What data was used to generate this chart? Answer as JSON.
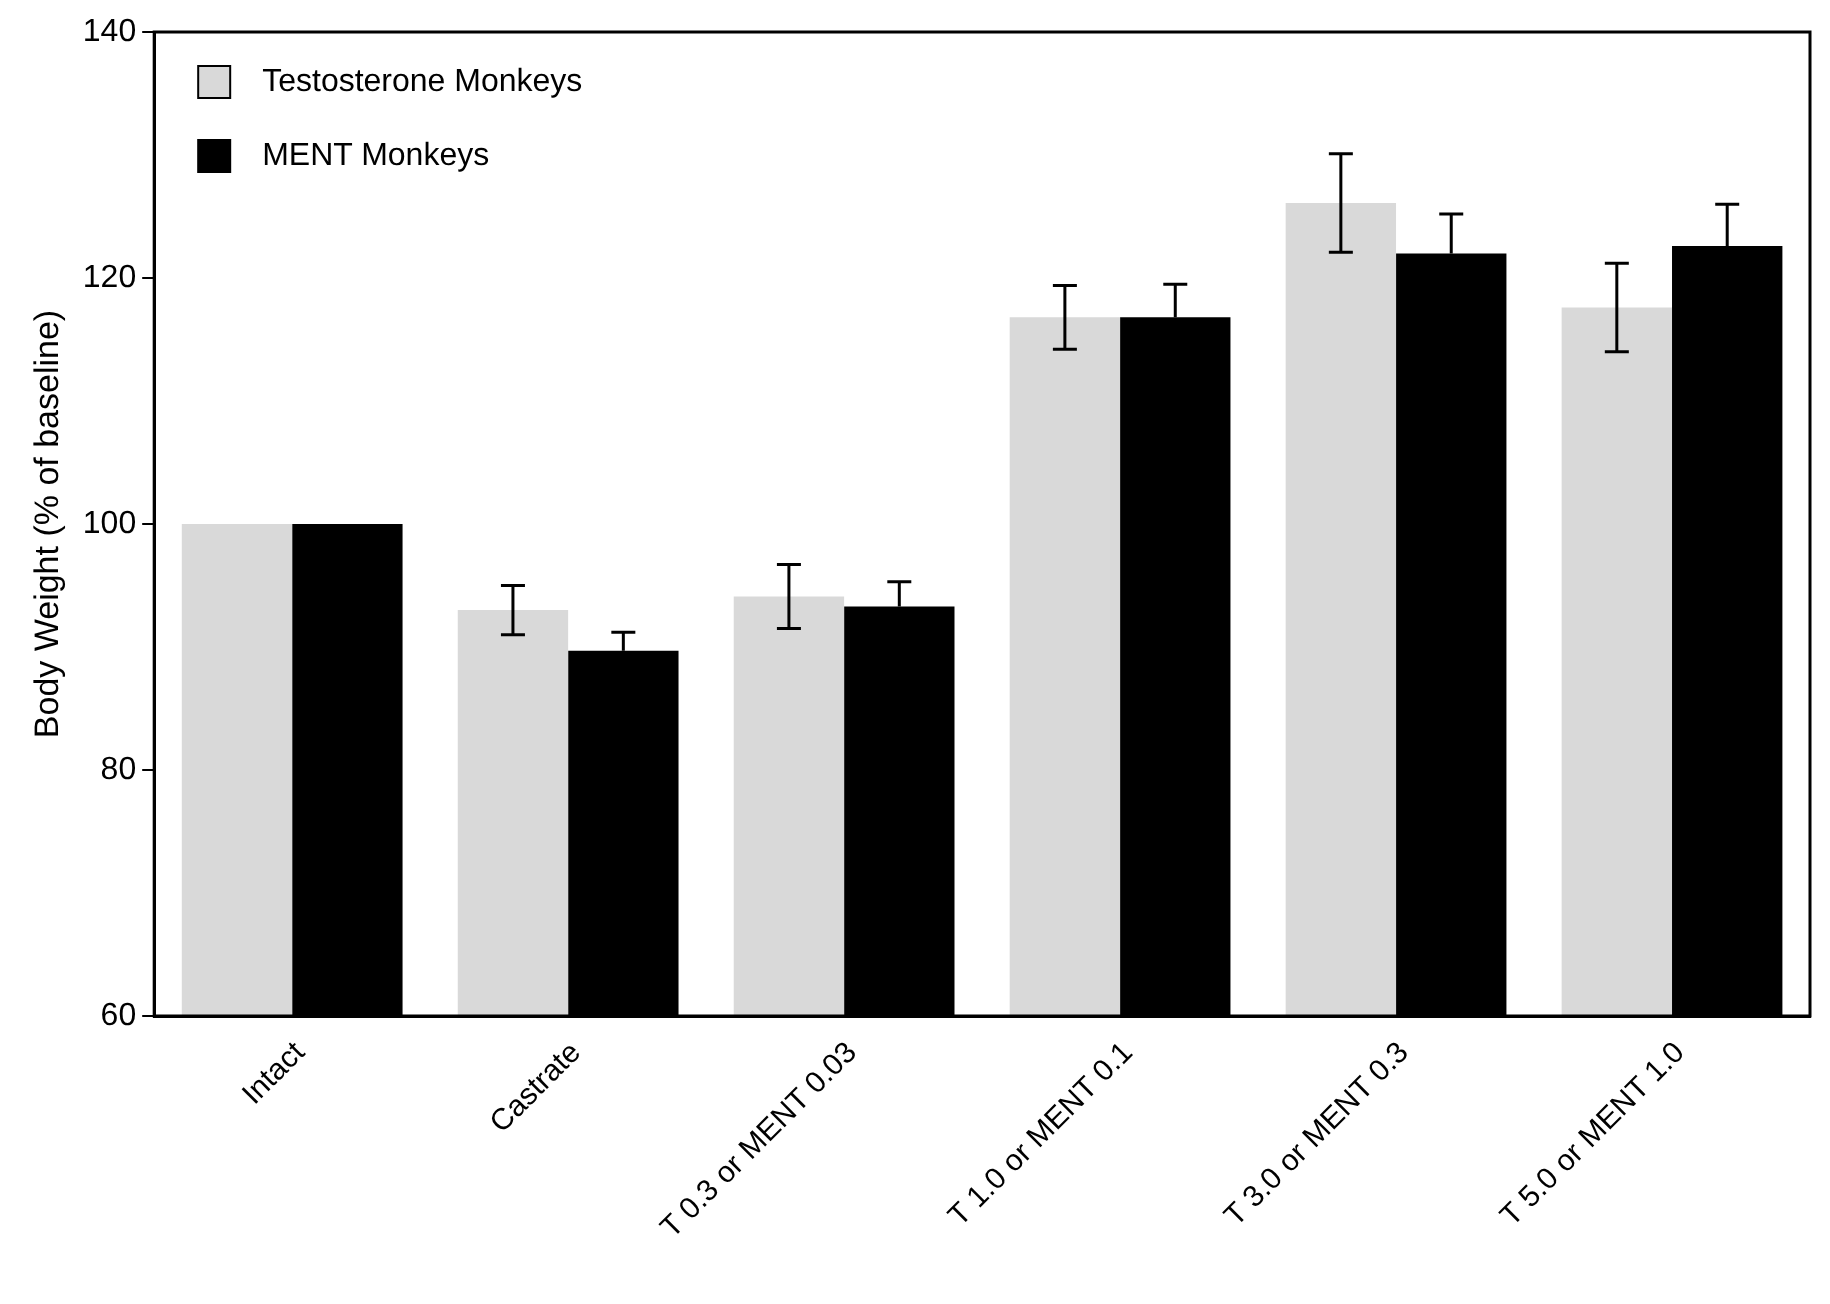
{
  "chart_data": {
    "type": "bar",
    "ylabel": "Body Weight (% of baseline)",
    "categories": [
      "Intact",
      "Castrate",
      "T 0.3 or MENT 0.03",
      "T 1.0 or MENT 0.1",
      "T 3.0 or MENT 0.3",
      "T 5.0 or MENT 1.0"
    ],
    "series": [
      {
        "name": "Testosterone Monkeys",
        "color": "#d9d9d9",
        "values": [
          100,
          93.0,
          94.1,
          116.8,
          126.1,
          117.6
        ],
        "errors": [
          null,
          2.0,
          2.6,
          2.6,
          4.0,
          3.6
        ]
      },
      {
        "name": "MENT Monkeys",
        "color": "#000000",
        "values": [
          100,
          89.7,
          93.3,
          116.8,
          122.0,
          122.6
        ],
        "errors": [
          null,
          1.5,
          2.0,
          2.7,
          3.2,
          3.4
        ]
      }
    ],
    "ylim": [
      60,
      140
    ],
    "yticks": [
      60,
      80,
      100,
      120,
      140
    ],
    "grid": false,
    "legend": "top left"
  }
}
